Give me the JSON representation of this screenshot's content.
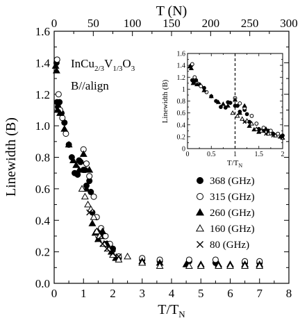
{
  "chart_data": {
    "type": "scatter",
    "xlabel_main": "T/T",
    "xlabel_sub": "N",
    "top_xlabel": "T (N)",
    "ylabel": "Linewidth (B)",
    "xlim": [
      0,
      8
    ],
    "ylim": [
      0,
      1.6
    ],
    "top_xlim": [
      0,
      300
    ],
    "x_ticks": [
      "0",
      "1",
      "2",
      "3",
      "4",
      "5",
      "6",
      "7",
      "8"
    ],
    "y_ticks": [
      "0.0",
      "0.2",
      "0.4",
      "0.6",
      "0.8",
      "1.0",
      "1.2",
      "1.4",
      "1.6"
    ],
    "top_ticks": [
      "0",
      "50",
      "100",
      "150",
      "200",
      "250",
      "300"
    ],
    "annotation": {
      "compound_parts": [
        "InCu",
        "2/3",
        "V",
        "1/3",
        "O",
        "3"
      ],
      "field": "B//align"
    },
    "series": [
      {
        "name": "368 (GHz)",
        "marker": "filled-circle",
        "x": [
          0.08,
          0.1,
          0.13,
          0.18,
          0.25,
          0.35,
          0.5,
          0.6,
          0.7,
          0.8,
          0.85,
          0.9,
          1.0,
          1.05,
          1.1,
          1.2,
          1.25,
          1.3,
          1.5,
          1.6,
          1.7,
          1.8,
          2.0,
          2.2,
          3.0,
          3.6,
          4.6,
          5.5,
          6.5,
          7.0
        ],
        "y": [
          1.4,
          1.15,
          1.12,
          1.15,
          1.08,
          1.02,
          0.88,
          0.8,
          0.7,
          0.69,
          0.78,
          0.77,
          0.72,
          0.72,
          0.62,
          0.65,
          0.58,
          0.45,
          0.33,
          0.3,
          0.3,
          0.25,
          0.22,
          0.16,
          0.15,
          0.14,
          0.14,
          0.13,
          0.13,
          0.13
        ]
      },
      {
        "name": "315 (GHz)",
        "marker": "open-circle",
        "x": [
          0.1,
          0.15,
          0.2,
          0.28,
          0.4,
          1.0,
          1.1,
          1.2,
          1.35,
          1.45,
          1.6,
          1.75,
          1.9,
          2.2,
          3.0,
          3.6,
          4.6,
          5.5,
          6.5,
          7.0
        ],
        "y": [
          1.42,
          1.2,
          1.1,
          1.05,
          0.95,
          0.85,
          0.76,
          0.68,
          0.55,
          0.42,
          0.35,
          0.3,
          0.25,
          0.17,
          0.16,
          0.15,
          0.15,
          0.15,
          0.14,
          0.14
        ]
      },
      {
        "name": "260 (GHz)",
        "marker": "filled-triangle",
        "x": [
          0.05,
          0.08,
          0.12,
          0.2,
          0.35,
          0.5,
          0.65,
          0.75,
          0.85,
          1.0,
          1.1,
          1.2,
          1.3,
          1.4,
          1.5,
          1.65,
          1.8,
          1.95,
          2.1,
          3.0,
          3.6,
          4.5,
          5.0,
          5.6,
          6.0,
          6.5,
          7.0
        ],
        "y": [
          1.38,
          1.35,
          1.1,
          1.08,
          0.98,
          0.88,
          0.78,
          0.75,
          0.72,
          0.82,
          0.6,
          0.72,
          0.38,
          0.32,
          0.28,
          0.33,
          0.25,
          0.2,
          0.16,
          0.14,
          0.13,
          0.12,
          0.12,
          0.12,
          0.12,
          0.12,
          0.12
        ]
      },
      {
        "name": "160 (GHz)",
        "marker": "open-triangle",
        "x": [
          0.95,
          1.05,
          1.15,
          1.25,
          1.35,
          1.45,
          1.55,
          1.7,
          1.85,
          2.0,
          2.2,
          2.5,
          3.0,
          3.6,
          4.6,
          5.0,
          5.6,
          6.0,
          6.5,
          7.0
        ],
        "y": [
          0.6,
          0.55,
          0.5,
          0.47,
          0.42,
          0.33,
          0.3,
          0.25,
          0.22,
          0.18,
          0.15,
          0.17,
          0.13,
          0.11,
          0.11,
          0.11,
          0.11,
          0.11,
          0.11,
          0.11
        ]
      },
      {
        "name": "80 (GHz)",
        "marker": "cross",
        "x": [
          1.2,
          1.5,
          1.65,
          1.8,
          2.0,
          2.2
        ],
        "y": [
          0.45,
          0.28,
          0.25,
          0.22,
          0.19,
          0.17
        ]
      }
    ],
    "inset": {
      "xlabel_main": "T/T",
      "xlabel_sub": "N",
      "ylabel": "Linewidth (B)",
      "xlim": [
        0,
        2
      ],
      "ylim": [
        0,
        1.6
      ],
      "x_ticks": [
        "0",
        "0.5",
        "1",
        "1.5",
        "2"
      ],
      "y_ticks": [
        "0",
        "0.2",
        "0.4",
        "0.6",
        "0.8",
        "1",
        "1.2",
        "1.4",
        "1.6"
      ],
      "dashed_line_x": 1
    }
  }
}
